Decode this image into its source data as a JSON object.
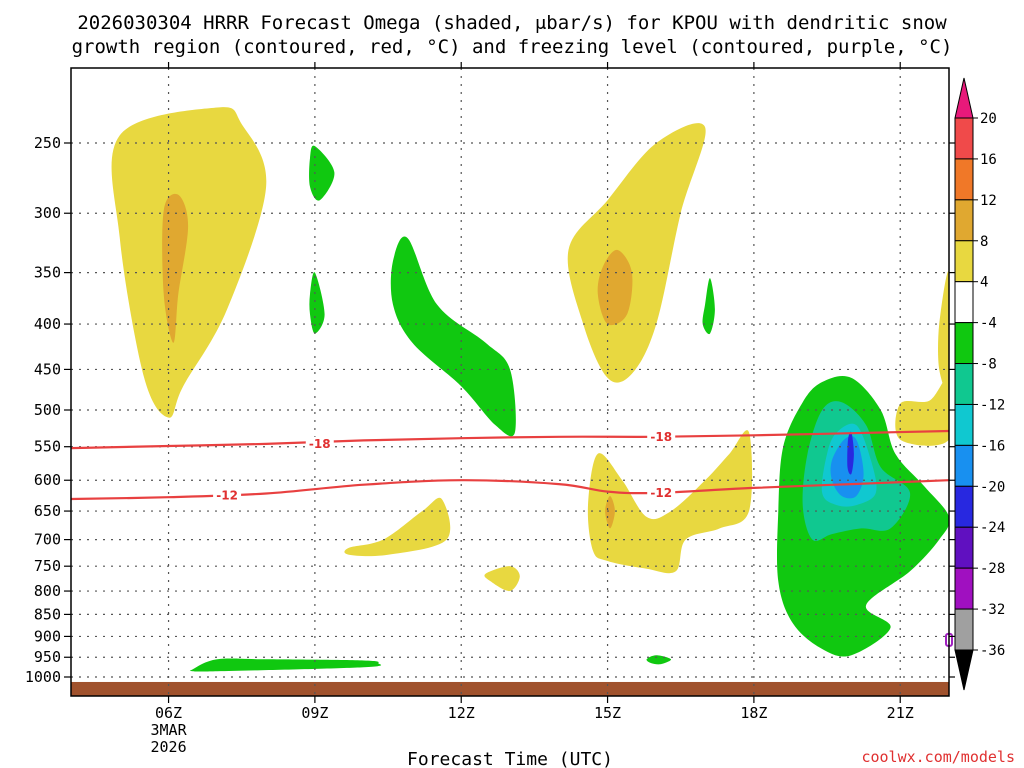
{
  "chart_data": {
    "type": "time-height cross-section",
    "title_line1": "2026030304 HRRR Forecast Omega (shaded, μbar/s) for KPOU with dendritic snow",
    "title_line2": "growth region (contoured, red, °C) and freezing level (contoured, purple, °C)",
    "xlabel": "Forecast Time (UTC)",
    "credit": "coolwx.com/models",
    "x_ticks": [
      {
        "hour": 6,
        "label": "06Z",
        "sub1": "3MAR",
        "sub2": "2026"
      },
      {
        "hour": 9,
        "label": "09Z"
      },
      {
        "hour": 12,
        "label": "12Z"
      },
      {
        "hour": 15,
        "label": "15Z"
      },
      {
        "hour": 18,
        "label": "18Z"
      },
      {
        "hour": 21,
        "label": "21Z"
      }
    ],
    "x_range_hours": [
      4,
      22
    ],
    "y_ticks_hpa": [
      250,
      300,
      350,
      400,
      450,
      500,
      550,
      600,
      650,
      700,
      750,
      800,
      850,
      900,
      950,
      1000
    ],
    "y_range_hpa": [
      200,
      1030
    ],
    "colorbar": {
      "labels": [
        "20",
        "16",
        "12",
        "8",
        "4",
        "-4",
        "-8",
        "-12",
        "-16",
        "-20",
        "-24",
        "-28",
        "-32",
        "-36"
      ],
      "colors": [
        "#e8197a",
        "#f04a4a",
        "#f07828",
        "#e0a830",
        "#e8d840",
        "#ffffff",
        "#10c810",
        "#10c890",
        "#10c8d0",
        "#1890f0",
        "#2828e0",
        "#6010c0",
        "#a010c0",
        "#a0a0a0",
        "#000000"
      ]
    },
    "contours": [
      {
        "name": "dgz-top",
        "label": "-18",
        "color": "#e84040",
        "points": [
          [
            4,
            552
          ],
          [
            6,
            549
          ],
          [
            8,
            546
          ],
          [
            10,
            541
          ],
          [
            12,
            538
          ],
          [
            14,
            536
          ],
          [
            16,
            536
          ],
          [
            18,
            534
          ],
          [
            20,
            531
          ],
          [
            22,
            528
          ]
        ],
        "label_positions": [
          [
            9.1,
            546
          ],
          [
            16.1,
            536
          ]
        ]
      },
      {
        "name": "dgz-bottom",
        "label": "-12",
        "color": "#e84040",
        "points": [
          [
            4,
            630
          ],
          [
            6,
            627
          ],
          [
            8,
            621
          ],
          [
            10,
            607
          ],
          [
            12,
            600
          ],
          [
            14,
            606
          ],
          [
            15,
            618
          ],
          [
            16,
            620
          ],
          [
            18,
            612
          ],
          [
            20,
            606
          ],
          [
            22,
            600
          ]
        ],
        "label_positions": [
          [
            7.2,
            624
          ],
          [
            16.1,
            620
          ]
        ]
      }
    ],
    "freezing_level_label": "0",
    "shaded_regions": [
      {
        "name": "yellow-west-upper",
        "value": 4,
        "color": "#e8d840",
        "points": [
          [
            5,
            245
          ],
          [
            7,
            228
          ],
          [
            7.5,
            238
          ],
          [
            8,
            280
          ],
          [
            7.2,
            385
          ],
          [
            6.3,
            470
          ],
          [
            6,
            510
          ],
          [
            5.5,
            460
          ],
          [
            5,
            320
          ]
        ]
      },
      {
        "name": "orange-west-upper",
        "value": 8,
        "color": "#e0a830",
        "points": [
          [
            5.9,
            298
          ],
          [
            6.2,
            286
          ],
          [
            6.4,
            310
          ],
          [
            6.2,
            370
          ],
          [
            6.1,
            420
          ],
          [
            5.9,
            370
          ]
        ]
      },
      {
        "name": "yellow-center-upper",
        "value": 4,
        "color": "#e8d840",
        "points": [
          [
            14.2,
            330
          ],
          [
            15,
            290
          ],
          [
            16,
            250
          ],
          [
            17,
            240
          ],
          [
            16.5,
            300
          ],
          [
            16,
            400
          ],
          [
            15.5,
            455
          ],
          [
            15,
            460
          ],
          [
            14.5,
            400
          ]
        ]
      },
      {
        "name": "orange-center-upper",
        "value": 8,
        "color": "#e0a830",
        "points": [
          [
            14.9,
            345
          ],
          [
            15.2,
            330
          ],
          [
            15.5,
            350
          ],
          [
            15.4,
            390
          ],
          [
            15,
            400
          ],
          [
            14.8,
            370
          ]
        ]
      },
      {
        "name": "green-center-upper",
        "value": -4,
        "color": "#10c810",
        "points": [
          [
            10.6,
            340
          ],
          [
            10.9,
            320
          ],
          [
            11.5,
            380
          ],
          [
            12.5,
            420
          ],
          [
            13,
            450
          ],
          [
            13.1,
            530
          ],
          [
            12.7,
            520
          ],
          [
            12,
            470
          ],
          [
            11,
            420
          ],
          [
            10.6,
            380
          ]
        ]
      },
      {
        "name": "green-small-top",
        "value": -4,
        "color": "#10c810",
        "points": [
          [
            8.9,
            260
          ],
          [
            9.0,
            252
          ],
          [
            9.4,
            270
          ],
          [
            9.1,
            290
          ],
          [
            8.9,
            280
          ]
        ]
      },
      {
        "name": "green-small-mid",
        "value": -4,
        "color": "#10c810",
        "points": [
          [
            8.9,
            370
          ],
          [
            9.0,
            350
          ],
          [
            9.2,
            390
          ],
          [
            9.0,
            410
          ],
          [
            8.9,
            390
          ]
        ]
      },
      {
        "name": "green-small-right",
        "value": -4,
        "color": "#10c810",
        "points": [
          [
            17,
            380
          ],
          [
            17.1,
            355
          ],
          [
            17.2,
            385
          ],
          [
            17.1,
            410
          ],
          [
            16.95,
            400
          ]
        ]
      },
      {
        "name": "yellow-west-low",
        "value": 4,
        "color": "#e8d840",
        "points": [
          [
            9.7,
            715
          ],
          [
            10.4,
            700
          ],
          [
            11.2,
            650
          ],
          [
            11.6,
            630
          ],
          [
            11.7,
            700
          ],
          [
            10.5,
            728
          ],
          [
            9.7,
            728
          ]
        ]
      },
      {
        "name": "yellow-small-low",
        "value": 4,
        "color": "#e8d840",
        "points": [
          [
            12.5,
            765
          ],
          [
            13.0,
            750
          ],
          [
            13.2,
            770
          ],
          [
            13.0,
            800
          ],
          [
            12.6,
            780
          ]
        ]
      },
      {
        "name": "yellow-center-low",
        "value": 4,
        "color": "#e8d840",
        "points": [
          [
            14.6,
            640
          ],
          [
            14.8,
            560
          ],
          [
            15.3,
            600
          ],
          [
            15.8,
            660
          ],
          [
            16.3,
            650
          ],
          [
            17,
            600
          ],
          [
            17.5,
            560
          ],
          [
            17.9,
            530
          ],
          [
            17.9,
            650
          ],
          [
            17.3,
            680
          ],
          [
            16.6,
            700
          ],
          [
            16.4,
            760
          ],
          [
            15.8,
            755
          ],
          [
            15,
            740
          ],
          [
            14.7,
            720
          ]
        ]
      },
      {
        "name": "orange-center-low",
        "value": 8,
        "color": "#e0a830",
        "points": [
          [
            14.95,
            650
          ],
          [
            15.05,
            625
          ],
          [
            15.15,
            650
          ],
          [
            15.05,
            680
          ]
        ]
      },
      {
        "name": "yellow-east-mid",
        "value": 4,
        "color": "#e8d840",
        "points": [
          [
            21,
            492
          ],
          [
            21.6,
            488
          ],
          [
            22,
            460
          ],
          [
            22,
            540
          ],
          [
            21,
            540
          ]
        ]
      },
      {
        "name": "yellow-east-upper",
        "value": 4,
        "color": "#e8d840",
        "points": [
          [
            21.8,
            400
          ],
          [
            22,
            350
          ],
          [
            22,
            470
          ],
          [
            21.8,
            450
          ]
        ]
      },
      {
        "name": "green-east-big",
        "value": -4,
        "color": "#10c810",
        "points": [
          [
            18.6,
            550
          ],
          [
            19,
            490
          ],
          [
            19.4,
            465
          ],
          [
            20,
            460
          ],
          [
            20.6,
            500
          ],
          [
            20.9,
            560
          ],
          [
            21.5,
            610
          ],
          [
            22,
            660
          ],
          [
            21.8,
            700
          ],
          [
            21.2,
            760
          ],
          [
            20.3,
            830
          ],
          [
            20.8,
            880
          ],
          [
            20,
            945
          ],
          [
            19.4,
            930
          ],
          [
            18.8,
            870
          ],
          [
            18.5,
            780
          ],
          [
            18.5,
            650
          ]
        ]
      },
      {
        "name": "teal-east",
        "value": -8,
        "color": "#10c890",
        "points": [
          [
            19.1,
            560
          ],
          [
            19.4,
            500
          ],
          [
            19.8,
            490
          ],
          [
            20.3,
            520
          ],
          [
            20.6,
            580
          ],
          [
            21.2,
            620
          ],
          [
            20.8,
            680
          ],
          [
            20.2,
            680
          ],
          [
            19.6,
            690
          ],
          [
            19.2,
            700
          ],
          [
            19.0,
            640
          ]
        ]
      },
      {
        "name": "cyan-east",
        "value": -12,
        "color": "#10c8d0",
        "points": [
          [
            19.5,
            560
          ],
          [
            19.7,
            530
          ],
          [
            20.1,
            520
          ],
          [
            20.4,
            570
          ],
          [
            20.5,
            620
          ],
          [
            20.1,
            640
          ],
          [
            19.7,
            640
          ],
          [
            19.4,
            620
          ]
        ]
      },
      {
        "name": "blue-east",
        "value": -16,
        "color": "#1890f0",
        "points": [
          [
            19.6,
            570
          ],
          [
            19.85,
            540
          ],
          [
            20.1,
            540
          ],
          [
            20.25,
            590
          ],
          [
            20.1,
            625
          ],
          [
            19.8,
            625
          ],
          [
            19.6,
            600
          ]
        ]
      },
      {
        "name": "darkblue-east",
        "value": -20,
        "color": "#2828e0",
        "points": [
          [
            19.93,
            540
          ],
          [
            20.0,
            530
          ],
          [
            20.05,
            560
          ],
          [
            20.0,
            590
          ],
          [
            19.92,
            580
          ]
        ]
      },
      {
        "name": "green-low-west",
        "value": -4,
        "color": "#10c810",
        "points": [
          [
            6.5,
            980
          ],
          [
            7,
            955
          ],
          [
            8,
            955
          ],
          [
            10,
            958
          ],
          [
            10.3,
            965
          ],
          [
            10,
            975
          ],
          [
            7,
            985
          ],
          [
            6.5,
            985
          ]
        ]
      },
      {
        "name": "green-low-center",
        "value": -4,
        "color": "#10c810",
        "points": [
          [
            15.8,
            955
          ],
          [
            16,
            945
          ],
          [
            16.3,
            955
          ],
          [
            16.1,
            967
          ],
          [
            15.9,
            965
          ]
        ]
      }
    ]
  }
}
